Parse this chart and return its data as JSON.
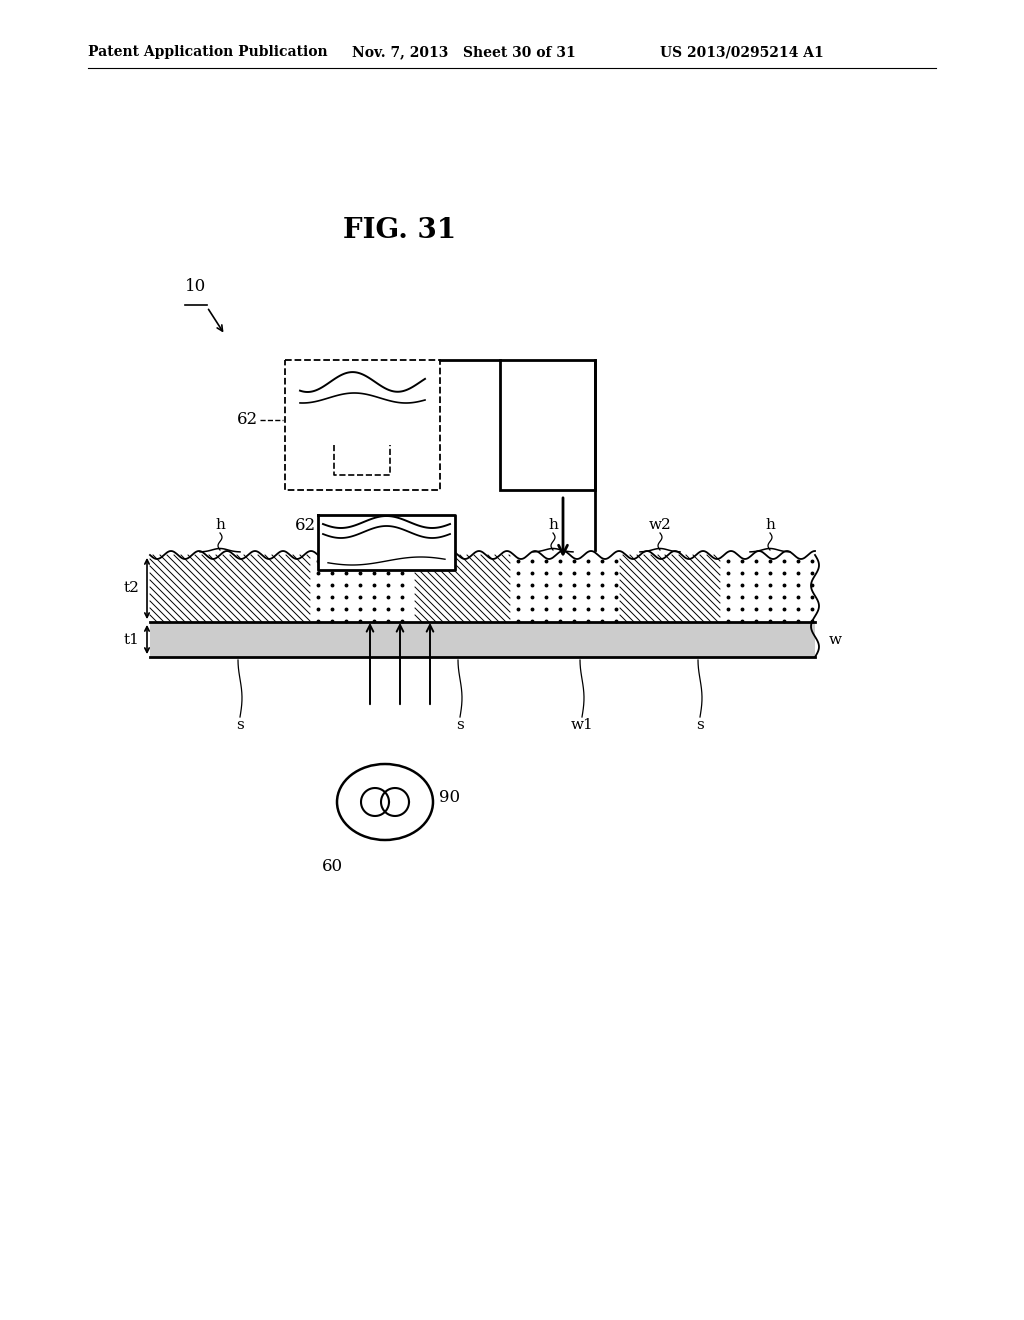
{
  "title": "FIG. 31",
  "header_left": "Patent Application Publication",
  "header_mid": "Nov. 7, 2013   Sheet 30 of 31",
  "header_right": "US 2013/0295214 A1",
  "bg_color": "#ffffff",
  "label_10": "10",
  "label_62_upper": "62",
  "label_62_lower": "62",
  "label_w2": "w2",
  "label_w": "w",
  "label_w1": "w1",
  "label_t2": "t2",
  "label_t1": "t1",
  "label_90": "90",
  "label_60": "60"
}
